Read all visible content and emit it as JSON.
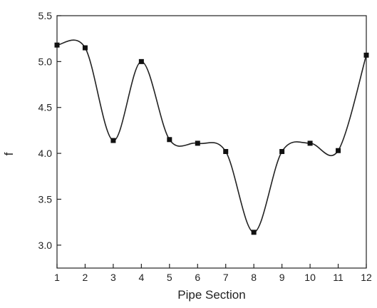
{
  "chart_data": {
    "type": "line",
    "title": "",
    "xlabel": "Pipe Section",
    "ylabel": "f",
    "xlim": [
      1,
      12
    ],
    "ylim": [
      2.75,
      5.5
    ],
    "x_ticks": [
      1,
      2,
      3,
      4,
      5,
      6,
      7,
      8,
      9,
      10,
      11,
      12
    ],
    "x_tick_labels": [
      "1",
      "2",
      "3",
      "4",
      "5",
      "6",
      "7",
      "8",
      "9",
      "10",
      "11",
      "12"
    ],
    "y_ticks": [
      3.0,
      3.5,
      4.0,
      4.5,
      5.0,
      5.5
    ],
    "y_tick_labels": [
      "3.0",
      "3.5",
      "4.0",
      "4.5",
      "5.0",
      "5.5"
    ],
    "grid": false,
    "legend": "none",
    "smooth": true,
    "colors": {
      "line": "#222222",
      "marker": "#111111",
      "axis": "#222222"
    },
    "series": [
      {
        "x": [
          1,
          2,
          3,
          4,
          5,
          6,
          7,
          8,
          9,
          10,
          11,
          12
        ],
        "values": [
          5.18,
          5.15,
          4.14,
          5.0,
          4.15,
          4.11,
          4.02,
          3.14,
          4.02,
          4.11,
          4.03,
          5.07
        ]
      }
    ]
  }
}
